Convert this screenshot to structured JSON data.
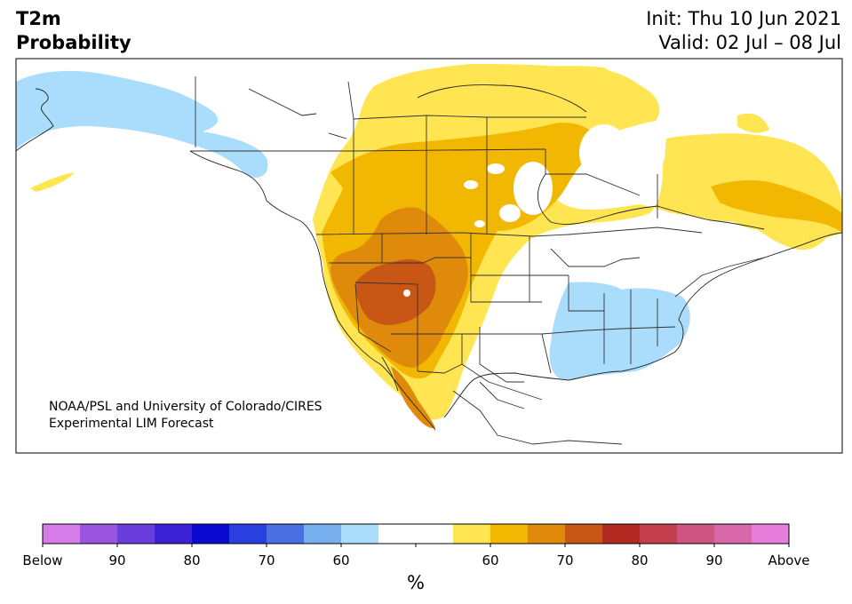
{
  "title": {
    "line1": "T2m",
    "line2": "Probability",
    "init": "Init: Thu 10 Jun 2021",
    "valid": "Valid: 02 Jul – 08 Jul"
  },
  "credit": {
    "line1": "NOAA/PSL and University of Colorado/CIRES",
    "line2": "Experimental LIM Forecast"
  },
  "colorbar": {
    "colors": [
      "#d67ce8",
      "#9a55de",
      "#6a3edd",
      "#3c22d6",
      "#0a0ad2",
      "#2a3fe0",
      "#4a6fe3",
      "#77aeee",
      "#aadcfb",
      "#ffffff",
      "#ffffff",
      "#ffe552",
      "#f2b700",
      "#e08a0c",
      "#c85716",
      "#b22a22",
      "#c43f4e",
      "#cd5580",
      "#d868a8",
      "#e77edc"
    ],
    "tick_labels": [
      "Below",
      "90",
      "80",
      "70",
      "60",
      "",
      "60",
      "70",
      "80",
      "90",
      "Above"
    ],
    "unit": "%"
  },
  "legend_colors": {
    "below_60": "#aadcfb",
    "above_60": "#ffe552",
    "above_70": "#f2b700",
    "above_80": "#e08a0c",
    "above_90": "#c85716"
  }
}
